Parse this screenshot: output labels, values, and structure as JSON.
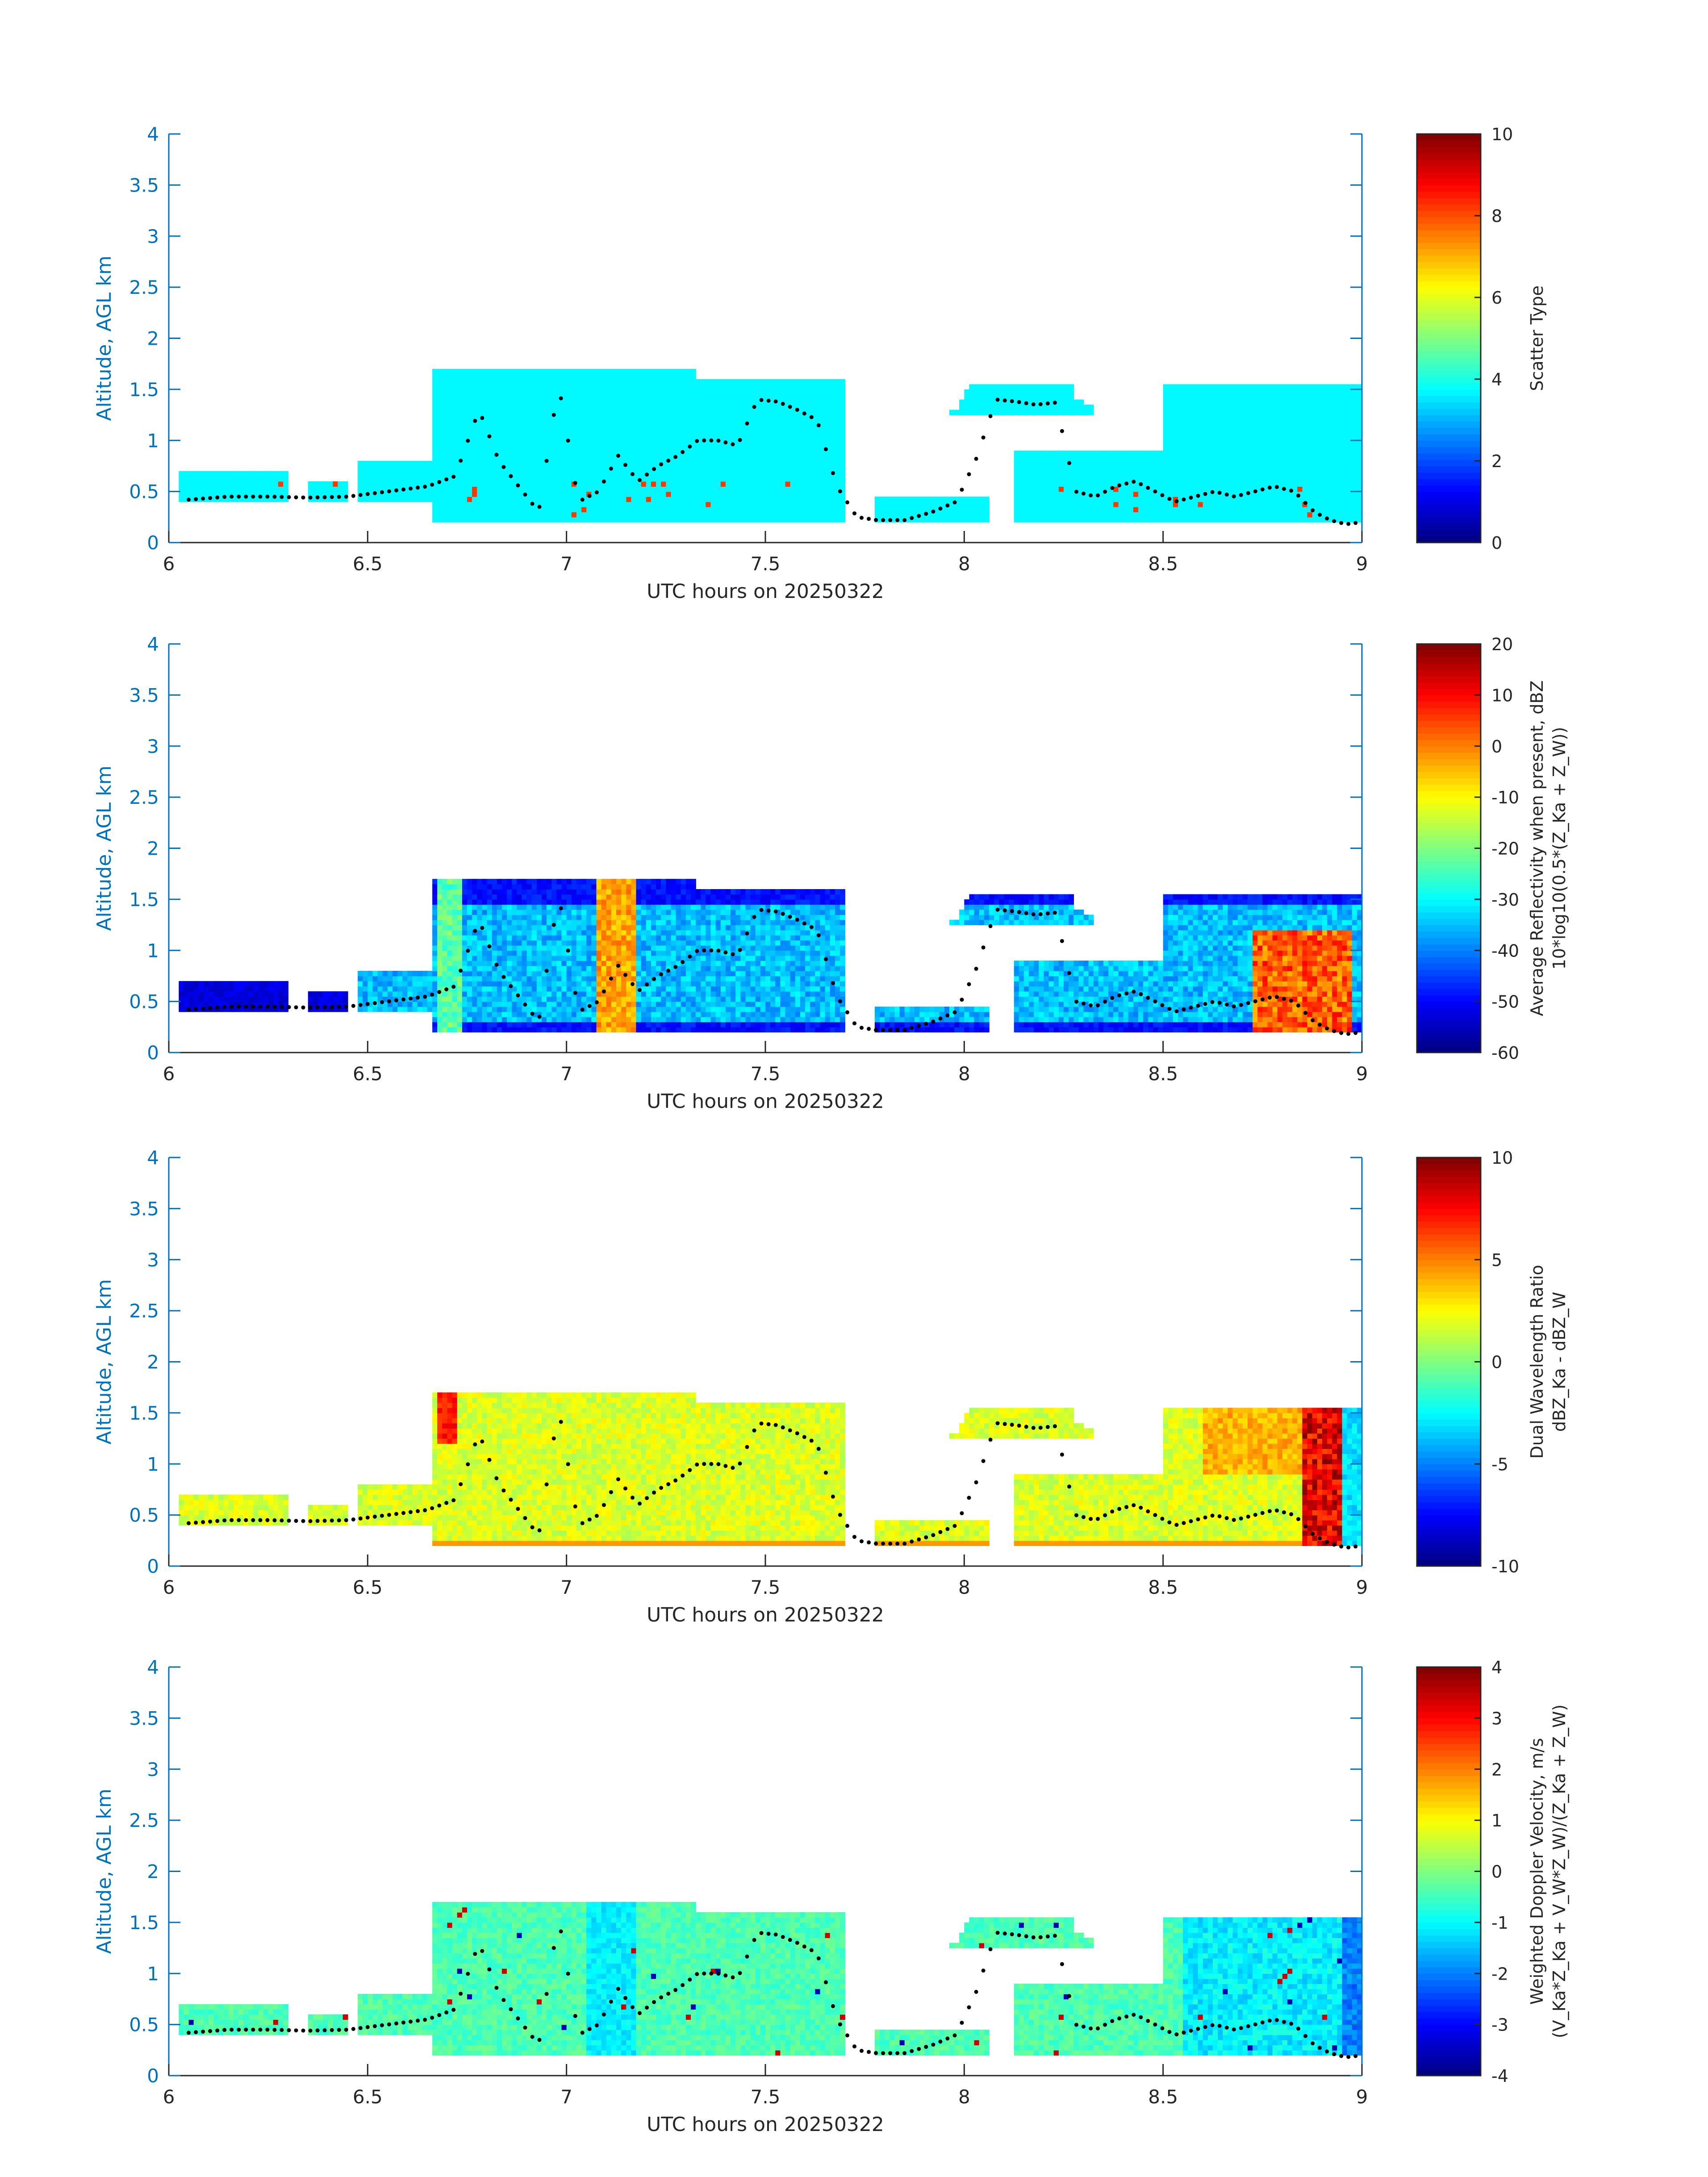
{
  "chart_data": [
    {
      "type": "heatmap",
      "xlabel": "UTC hours on 20250322",
      "ylabel": "Altitude, AGL km",
      "xlim": [
        6,
        9
      ],
      "ylim": [
        0,
        4
      ],
      "xticks": [
        "6",
        "6.5",
        "7",
        "7.5",
        "8",
        "8.5",
        "9"
      ],
      "yticks": [
        "0",
        "0.5",
        "1",
        "1.5",
        "2",
        "2.5",
        "3",
        "3.5",
        "4"
      ],
      "colorbar": {
        "label": "Scatter Type",
        "sublabel": "",
        "range": [
          0,
          10
        ],
        "ticks": [
          "0",
          "2",
          "4",
          "6",
          "8",
          "10"
        ]
      },
      "dominant_value": 3.7,
      "note_values": {
        "sparse_value": 8.2
      }
    },
    {
      "type": "heatmap",
      "xlabel": "UTC hours on 20250322",
      "ylabel": "Altitude, AGL km",
      "xlim": [
        6,
        9
      ],
      "ylim": [
        0,
        4
      ],
      "xticks": [
        "6",
        "6.5",
        "7",
        "7.5",
        "8",
        "8.5",
        "9"
      ],
      "yticks": [
        "0",
        "0.5",
        "1",
        "1.5",
        "2",
        "2.5",
        "3",
        "3.5",
        "4"
      ],
      "colorbar": {
        "label": "Average Reflectivity when present, dBZ",
        "sublabel": "10*log10(0.5*(Z_Ka + Z_W))",
        "range": [
          -60,
          20
        ],
        "ticks": [
          "-60",
          "-50",
          "-40",
          "-30",
          "-20",
          "-10",
          "0",
          "10",
          "20"
        ]
      }
    },
    {
      "type": "heatmap",
      "xlabel": "UTC hours on 20250322",
      "ylabel": "Altitude, AGL km",
      "xlim": [
        6,
        9
      ],
      "ylim": [
        0,
        4
      ],
      "xticks": [
        "6",
        "6.5",
        "7",
        "7.5",
        "8",
        "8.5",
        "9"
      ],
      "yticks": [
        "0",
        "0.5",
        "1",
        "1.5",
        "2",
        "2.5",
        "3",
        "3.5",
        "4"
      ],
      "colorbar": {
        "label": "Dual Wavelength Ratio",
        "sublabel": "dBZ_Ka - dBZ_W",
        "range": [
          -10,
          10
        ],
        "ticks": [
          "-10",
          "-5",
          "0",
          "5",
          "10"
        ]
      }
    },
    {
      "type": "heatmap",
      "xlabel": "UTC hours on 20250322",
      "ylabel": "Altitude, AGL km",
      "xlim": [
        6,
        9
      ],
      "ylim": [
        0,
        4
      ],
      "xticks": [
        "6",
        "6.5",
        "7",
        "7.5",
        "8",
        "8.5",
        "9"
      ],
      "yticks": [
        "0",
        "0.5",
        "1",
        "1.5",
        "2",
        "2.5",
        "3",
        "3.5",
        "4"
      ],
      "colorbar": {
        "label": "Weighted Doppler Velocity, m/s",
        "sublabel": "(V_Ka*Z_Ka + V_W*Z_W)/(Z_Ka + Z_W)",
        "range": [
          -4,
          4
        ],
        "ticks": [
          "-4",
          "-3",
          "-2",
          "-1",
          "0",
          "1",
          "2",
          "3",
          "4"
        ]
      }
    }
  ],
  "echo_regions_km": [
    [
      6.03,
      6.3,
      0.38,
      0.7
    ],
    [
      6.35,
      6.45,
      0.4,
      0.62
    ],
    [
      6.47,
      6.66,
      0.4,
      0.82
    ],
    [
      6.66,
      6.97,
      0.18,
      1.72
    ],
    [
      6.97,
      7.33,
      0.18,
      1.7
    ],
    [
      7.33,
      7.7,
      0.18,
      1.62
    ],
    [
      7.78,
      8.06,
      0.18,
      0.45
    ],
    [
      7.93,
      8.33,
      1.25,
      1.55
    ],
    [
      8.12,
      8.5,
      0.18,
      0.9
    ],
    [
      8.5,
      9.0,
      0.18,
      1.55
    ]
  ],
  "cloud_top_trace": [
    {
      "x": 6.05,
      "y": 0.42
    },
    {
      "x": 6.15,
      "y": 0.45
    },
    {
      "x": 6.25,
      "y": 0.45
    },
    {
      "x": 6.35,
      "y": 0.44
    },
    {
      "x": 6.45,
      "y": 0.45
    },
    {
      "x": 6.55,
      "y": 0.5
    },
    {
      "x": 6.65,
      "y": 0.55
    },
    {
      "x": 6.72,
      "y": 0.65
    },
    {
      "x": 6.78,
      "y": 1.3
    },
    {
      "x": 6.83,
      "y": 0.8
    },
    {
      "x": 6.88,
      "y": 0.55
    },
    {
      "x": 6.93,
      "y": 0.3
    },
    {
      "x": 6.98,
      "y": 1.55
    },
    {
      "x": 7.03,
      "y": 0.4
    },
    {
      "x": 7.08,
      "y": 0.5
    },
    {
      "x": 7.13,
      "y": 0.85
    },
    {
      "x": 7.18,
      "y": 0.6
    },
    {
      "x": 7.23,
      "y": 0.75
    },
    {
      "x": 7.28,
      "y": 0.85
    },
    {
      "x": 7.33,
      "y": 1.0
    },
    {
      "x": 7.38,
      "y": 1.0
    },
    {
      "x": 7.43,
      "y": 0.95
    },
    {
      "x": 7.48,
      "y": 1.4
    },
    {
      "x": 7.53,
      "y": 1.38
    },
    {
      "x": 7.58,
      "y": 1.3
    },
    {
      "x": 7.63,
      "y": 1.2
    },
    {
      "x": 7.68,
      "y": 0.55
    },
    {
      "x": 7.73,
      "y": 0.25
    },
    {
      "x": 7.78,
      "y": 0.22
    },
    {
      "x": 7.85,
      "y": 0.22
    },
    {
      "x": 7.92,
      "y": 0.3
    },
    {
      "x": 7.98,
      "y": 0.4
    },
    {
      "x": 8.03,
      "y": 0.82
    },
    {
      "x": 8.08,
      "y": 1.4
    },
    {
      "x": 8.13,
      "y": 1.38
    },
    {
      "x": 8.18,
      "y": 1.35
    },
    {
      "x": 8.23,
      "y": 1.37
    },
    {
      "x": 8.28,
      "y": 0.5
    },
    {
      "x": 8.33,
      "y": 0.45
    },
    {
      "x": 8.38,
      "y": 0.55
    },
    {
      "x": 8.43,
      "y": 0.6
    },
    {
      "x": 8.48,
      "y": 0.5
    },
    {
      "x": 8.53,
      "y": 0.4
    },
    {
      "x": 8.58,
      "y": 0.45
    },
    {
      "x": 8.63,
      "y": 0.5
    },
    {
      "x": 8.68,
      "y": 0.45
    },
    {
      "x": 8.73,
      "y": 0.5
    },
    {
      "x": 8.78,
      "y": 0.55
    },
    {
      "x": 8.83,
      "y": 0.5
    },
    {
      "x": 8.88,
      "y": 0.3
    },
    {
      "x": 8.92,
      "y": 0.22
    },
    {
      "x": 8.96,
      "y": 0.18
    },
    {
      "x": 9.0,
      "y": 0.2
    }
  ]
}
